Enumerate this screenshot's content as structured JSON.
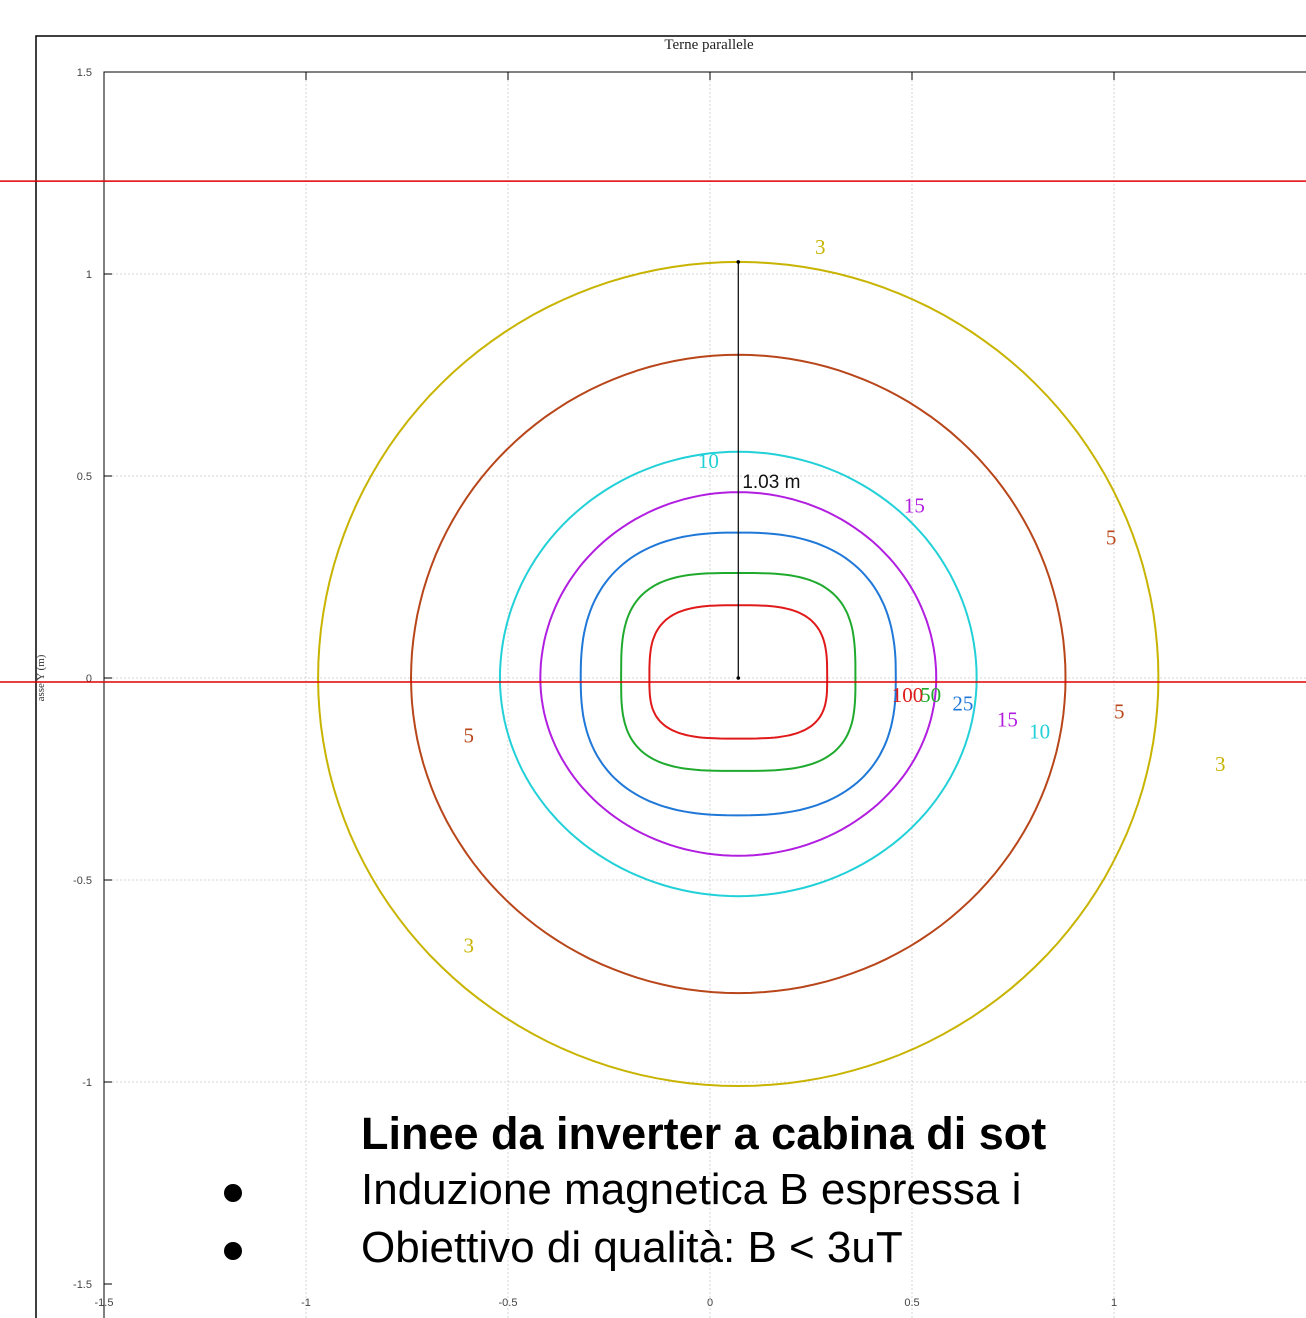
{
  "chart_data": {
    "type": "contour",
    "title": "Terne parallele",
    "ylabel": "asse Y (m)",
    "xlim": [
      -1.5,
      1.5
    ],
    "ylim": [
      -1.5,
      1.5
    ],
    "xticks": [
      "-1.5",
      "-1",
      "-0.5",
      "0",
      "0.5",
      "1"
    ],
    "yticks": [
      "1.5",
      "1",
      "0.5",
      "0",
      "-0.5",
      "-1",
      "-1.5"
    ],
    "grid": true,
    "contours": [
      {
        "level": "3",
        "color": "#c8b400",
        "cx": 0.07,
        "cy": 0.0,
        "rx": 1.04,
        "ry_top": 1.03,
        "ry_bot": 1.01
      },
      {
        "level": "5",
        "color": "#b8461a",
        "cx": 0.07,
        "cy": 0.0,
        "rx": 0.81,
        "ry_top": 0.8,
        "ry_bot": 0.78
      },
      {
        "level": "10",
        "color": "#22d0d8",
        "cx": 0.07,
        "cy": 0.0,
        "rx": 0.59,
        "ry_top": 0.56,
        "ry_bot": 0.54
      },
      {
        "level": "15",
        "color": "#b21ee0",
        "cx": 0.07,
        "cy": 0.0,
        "rx": 0.49,
        "ry_top": 0.46,
        "ry_bot": 0.44
      },
      {
        "level": "25",
        "color": "#1f78d8",
        "cx": 0.07,
        "cy": 0.0,
        "rx": 0.39,
        "ry_top": 0.36,
        "ry_bot": 0.34
      },
      {
        "level": "50",
        "color": "#1faa2e",
        "cx": 0.07,
        "cy": 0.0,
        "rx": 0.29,
        "ry_top": 0.26,
        "ry_bot": 0.23
      },
      {
        "level": "100",
        "color": "#e01a1a",
        "cx": 0.07,
        "cy": 0.0,
        "rx": 0.22,
        "ry_top": 0.18,
        "ry_bot": 0.15
      }
    ],
    "labels": [
      {
        "text": "3",
        "color": "#c8b400",
        "x": 0.26,
        "y": 1.05
      },
      {
        "text": "10",
        "color": "#22d0d8",
        "x": -0.03,
        "y": 0.52
      },
      {
        "text": "15",
        "color": "#b21ee0",
        "x": 0.48,
        "y": 0.41
      },
      {
        "text": "5",
        "color": "#b8461a",
        "x": 0.98,
        "y": 0.33
      },
      {
        "text": "100",
        "color": "#e01a1a",
        "x": 0.45,
        "y": -0.06
      },
      {
        "text": "50",
        "color": "#1faa2e",
        "x": 0.52,
        "y": -0.06
      },
      {
        "text": "25",
        "color": "#1f78d8",
        "x": 0.6,
        "y": -0.08
      },
      {
        "text": "15",
        "color": "#b21ee0",
        "x": 0.71,
        "y": -0.12
      },
      {
        "text": "10",
        "color": "#22d0d8",
        "x": 0.79,
        "y": -0.15
      },
      {
        "text": "5",
        "color": "#b8461a",
        "x": 1.0,
        "y": -0.1
      },
      {
        "text": "3",
        "color": "#c8b400",
        "x": 1.25,
        "y": -0.23
      },
      {
        "text": "5",
        "color": "#b8461a",
        "x": -0.61,
        "y": -0.16
      },
      {
        "text": "3",
        "color": "#c8b400",
        "x": -0.61,
        "y": -0.68
      }
    ],
    "dimension": {
      "text": "1.03 m",
      "x": 0.07,
      "y_from": 0.0,
      "y_to": 1.03,
      "label_x": 0.08,
      "label_y": 0.47
    },
    "reference_lines": [
      {
        "y": 1.23,
        "color": "#e00000"
      },
      {
        "y": -0.01,
        "color": "#e00000"
      }
    ]
  },
  "slide": {
    "heading": "Linee da inverter a cabina di sot",
    "bullets": [
      "Induzione magnetica B espressa i",
      "Obiettivo di qualità: B < 3uT"
    ]
  }
}
